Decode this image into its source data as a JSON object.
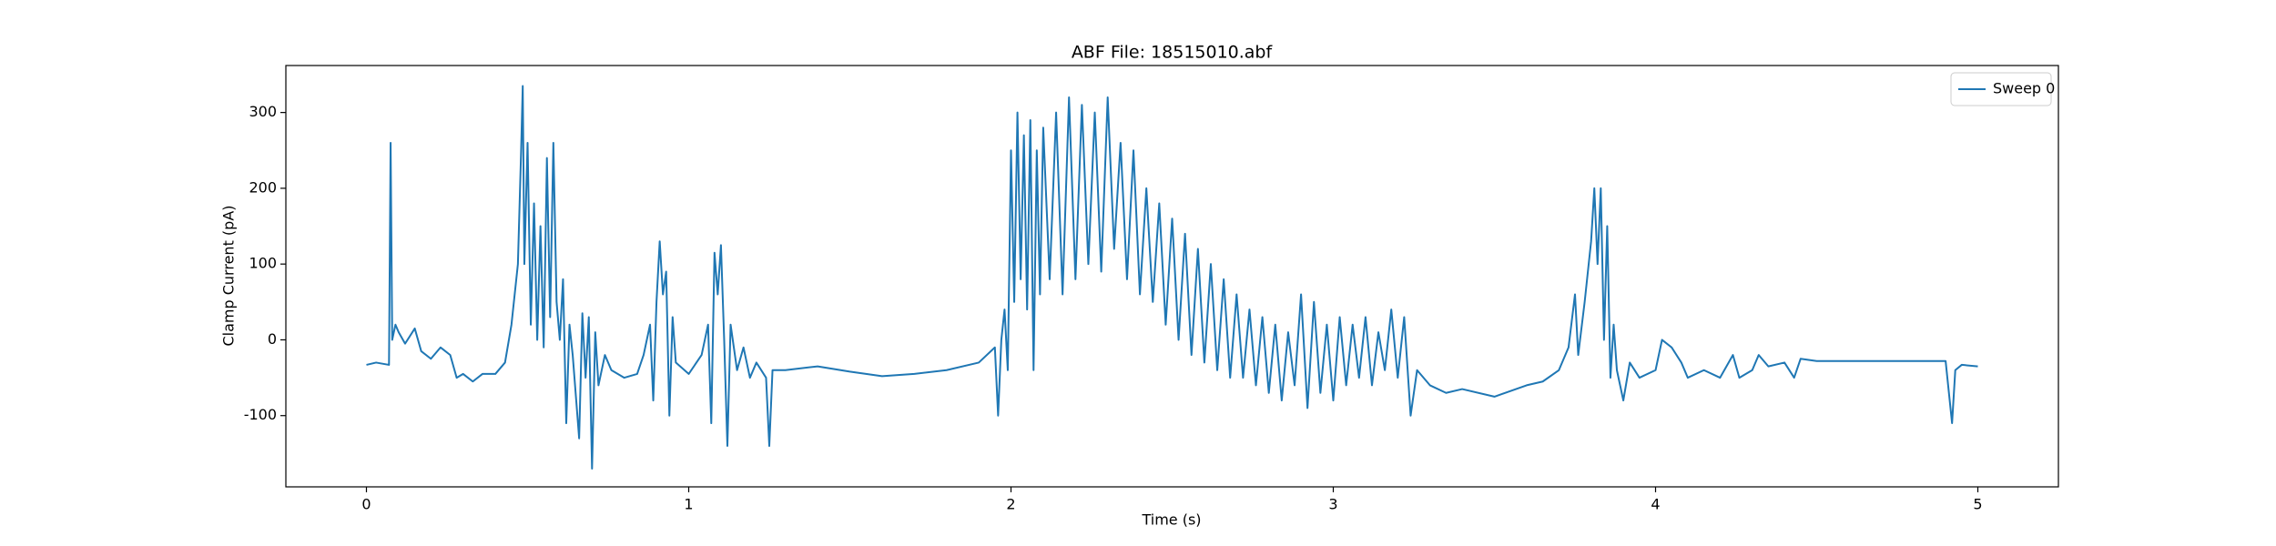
{
  "chart_data": {
    "type": "line",
    "title": "ABF File: 18515010.abf",
    "x_label": "Time (s)",
    "y_label": "Clamp Current (pA)",
    "xlim": [
      -0.25,
      5.25
    ],
    "ylim": [
      -194,
      362
    ],
    "xticks": [
      0,
      1,
      2,
      3,
      4,
      5
    ],
    "yticks": [
      -100,
      0,
      100,
      200,
      300
    ],
    "legend": "upper right",
    "x": [
      0,
      0.03,
      0.07,
      0.075,
      0.08,
      0.09,
      0.1,
      0.12,
      0.15,
      0.17,
      0.2,
      0.23,
      0.26,
      0.28,
      0.3,
      0.33,
      0.36,
      0.4,
      0.43,
      0.45,
      0.47,
      0.48,
      0.485,
      0.49,
      0.5,
      0.51,
      0.52,
      0.53,
      0.54,
      0.55,
      0.56,
      0.57,
      0.58,
      0.59,
      0.6,
      0.61,
      0.62,
      0.63,
      0.64,
      0.66,
      0.67,
      0.68,
      0.69,
      0.7,
      0.71,
      0.72,
      0.74,
      0.76,
      0.8,
      0.84,
      0.86,
      0.88,
      0.89,
      0.9,
      0.91,
      0.92,
      0.93,
      0.94,
      0.95,
      0.96,
      1.0,
      1.04,
      1.06,
      1.07,
      1.08,
      1.09,
      1.1,
      1.11,
      1.12,
      1.13,
      1.15,
      1.17,
      1.19,
      1.21,
      1.24,
      1.25,
      1.26,
      1.3,
      1.4,
      1.5,
      1.6,
      1.7,
      1.8,
      1.9,
      1.95,
      1.96,
      1.97,
      1.98,
      1.99,
      2.0,
      2.01,
      2.02,
      2.03,
      2.04,
      2.05,
      2.06,
      2.07,
      2.08,
      2.09,
      2.1,
      2.12,
      2.14,
      2.16,
      2.18,
      2.2,
      2.22,
      2.24,
      2.26,
      2.28,
      2.3,
      2.32,
      2.34,
      2.36,
      2.38,
      2.4,
      2.42,
      2.44,
      2.46,
      2.48,
      2.5,
      2.52,
      2.54,
      2.56,
      2.58,
      2.6,
      2.62,
      2.64,
      2.66,
      2.68,
      2.7,
      2.72,
      2.74,
      2.76,
      2.78,
      2.8,
      2.82,
      2.84,
      2.86,
      2.88,
      2.9,
      2.92,
      2.94,
      2.96,
      2.98,
      3.0,
      3.02,
      3.04,
      3.06,
      3.08,
      3.1,
      3.12,
      3.14,
      3.16,
      3.18,
      3.2,
      3.22,
      3.24,
      3.26,
      3.3,
      3.35,
      3.4,
      3.5,
      3.6,
      3.65,
      3.7,
      3.73,
      3.75,
      3.76,
      3.78,
      3.8,
      3.81,
      3.82,
      3.83,
      3.84,
      3.85,
      3.86,
      3.87,
      3.88,
      3.9,
      3.92,
      3.95,
      4.0,
      4.02,
      4.05,
      4.08,
      4.1,
      4.15,
      4.2,
      4.24,
      4.26,
      4.3,
      4.32,
      4.35,
      4.4,
      4.43,
      4.45,
      4.5,
      4.7,
      4.9,
      4.92,
      4.93,
      4.95,
      5.0
    ],
    "series": [
      {
        "name": "Sweep 0",
        "color": "#1f77b4",
        "values": [
          -33,
          -30,
          -33,
          260,
          0,
          20,
          10,
          -5,
          15,
          -15,
          -25,
          -10,
          -20,
          -50,
          -45,
          -55,
          -45,
          -45,
          -30,
          20,
          100,
          250,
          335,
          100,
          260,
          20,
          180,
          0,
          150,
          -10,
          240,
          30,
          260,
          50,
          0,
          80,
          -110,
          20,
          -20,
          -130,
          35,
          -50,
          30,
          -170,
          10,
          -60,
          -20,
          -40,
          -50,
          -45,
          -20,
          20,
          -80,
          50,
          130,
          60,
          90,
          -100,
          30,
          -30,
          -45,
          -20,
          20,
          -110,
          115,
          60,
          125,
          0,
          -140,
          20,
          -40,
          -10,
          -50,
          -30,
          -50,
          -140,
          -40,
          -40,
          -35,
          -42,
          -48,
          -45,
          -40,
          -30,
          -10,
          -100,
          0,
          40,
          -40,
          250,
          50,
          300,
          80,
          270,
          40,
          290,
          -40,
          250,
          60,
          280,
          80,
          300,
          60,
          320,
          80,
          310,
          100,
          300,
          90,
          320,
          120,
          260,
          80,
          250,
          60,
          200,
          50,
          180,
          20,
          160,
          0,
          140,
          -20,
          120,
          -30,
          100,
          -40,
          80,
          -50,
          60,
          -50,
          40,
          -60,
          30,
          -70,
          20,
          -80,
          10,
          -60,
          60,
          -90,
          50,
          -70,
          20,
          -80,
          30,
          -60,
          20,
          -50,
          30,
          -60,
          10,
          -40,
          40,
          -50,
          30,
          -100,
          -40,
          -60,
          -70,
          -65,
          -75,
          -60,
          -55,
          -40,
          -10,
          60,
          -20,
          50,
          130,
          200,
          100,
          200,
          0,
          150,
          -50,
          20,
          -40,
          -80,
          -30,
          -50,
          -40,
          0,
          -10,
          -30,
          -50,
          -40,
          -50,
          -20,
          -50,
          -40,
          -20,
          -35,
          -30,
          -50,
          -25,
          -28,
          -28,
          -28,
          -110,
          -40,
          -33,
          -35
        ]
      }
    ]
  }
}
